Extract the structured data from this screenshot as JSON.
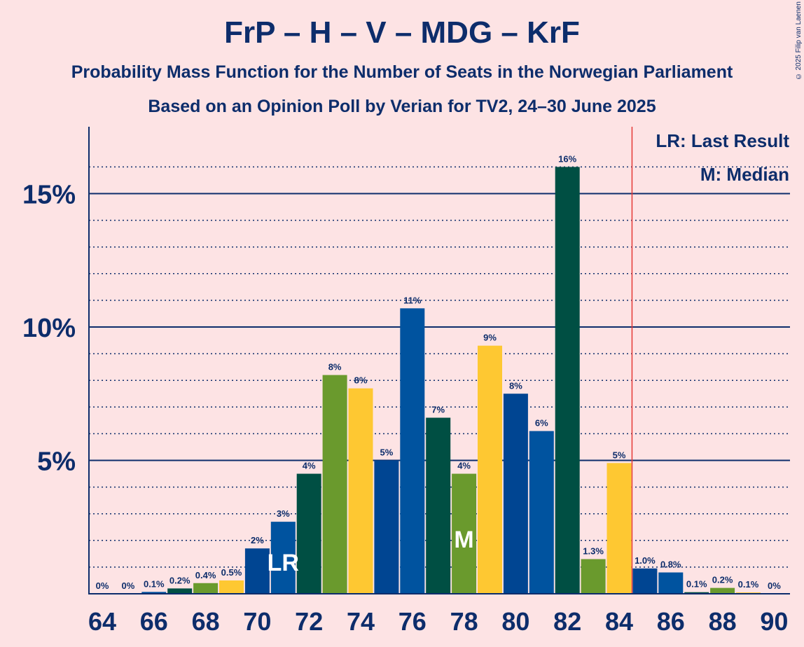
{
  "title": "FrP – H – V – MDG – KrF",
  "subtitle": "Probability Mass Function for the Number of Seats in the Norwegian Parliament",
  "subtitle2": "Based on an Opinion Poll by Verian for TV2, 24–30 June 2025",
  "copyright": "© 2025 Filip van Laenen",
  "legend": {
    "last_result": "LR: Last Result",
    "median": "M: Median"
  },
  "colors": {
    "background": "#fde3e4",
    "text": "#0d2d6b",
    "last_result_line": "#e53935",
    "bar_palette": [
      "#004f43",
      "#6a9a2d",
      "#fec832",
      "#00539f",
      "#004592"
    ]
  },
  "chart_data": {
    "type": "bar",
    "x": [
      64,
      65,
      66,
      67,
      68,
      69,
      70,
      71,
      72,
      73,
      74,
      75,
      76,
      77,
      78,
      79,
      80,
      81,
      82,
      83,
      84,
      85,
      86,
      87,
      88,
      89,
      90
    ],
    "values": [
      0,
      0,
      0.07,
      0.2,
      0.4,
      0.5,
      1.7,
      2.7,
      4.5,
      8.2,
      7.7,
      5.0,
      10.7,
      6.6,
      4.5,
      9.3,
      7.5,
      6.1,
      16.0,
      1.3,
      4.9,
      0.95,
      0.8,
      0.06,
      0.22,
      0.05,
      0
    ],
    "value_labels": [
      "0%",
      "0%",
      "0.1%",
      "0.2%",
      "0.4%",
      "0.5%",
      "2%",
      "3%",
      "4%",
      "8%",
      "8%",
      "5%",
      "11%",
      "7%",
      "4%",
      "9%",
      "8%",
      "6%",
      "16%",
      "1.3%",
      "5%",
      "1.0%",
      "0.8%",
      "0.1%",
      "0.2%",
      "0.1%",
      "0%"
    ],
    "bar_colors": [
      "#00539f",
      "#004592",
      "#00539f",
      "#004f43",
      "#6a9a2d",
      "#fec832",
      "#004592",
      "#00539f",
      "#004f43",
      "#6a9a2d",
      "#fec832",
      "#004592",
      "#00539f",
      "#004f43",
      "#6a9a2d",
      "#fec832",
      "#004592",
      "#00539f",
      "#004f43",
      "#6a9a2d",
      "#fec832",
      "#004592",
      "#00539f",
      "#004f43",
      "#6a9a2d",
      "#fec832",
      "#004592"
    ],
    "x_tick_labels": [
      "64",
      "66",
      "68",
      "70",
      "72",
      "74",
      "76",
      "78",
      "80",
      "82",
      "84",
      "86",
      "88",
      "90"
    ],
    "y_ticks": [
      5,
      10,
      15
    ],
    "y_tick_labels": [
      "5%",
      "10%",
      "15%"
    ],
    "ylim": [
      0,
      17.5
    ],
    "last_result_seat": 71,
    "last_result_marker": "LR",
    "median_seat": 78,
    "median_marker": "M",
    "last_result_line_after_seat": 84.5,
    "grid": true
  }
}
